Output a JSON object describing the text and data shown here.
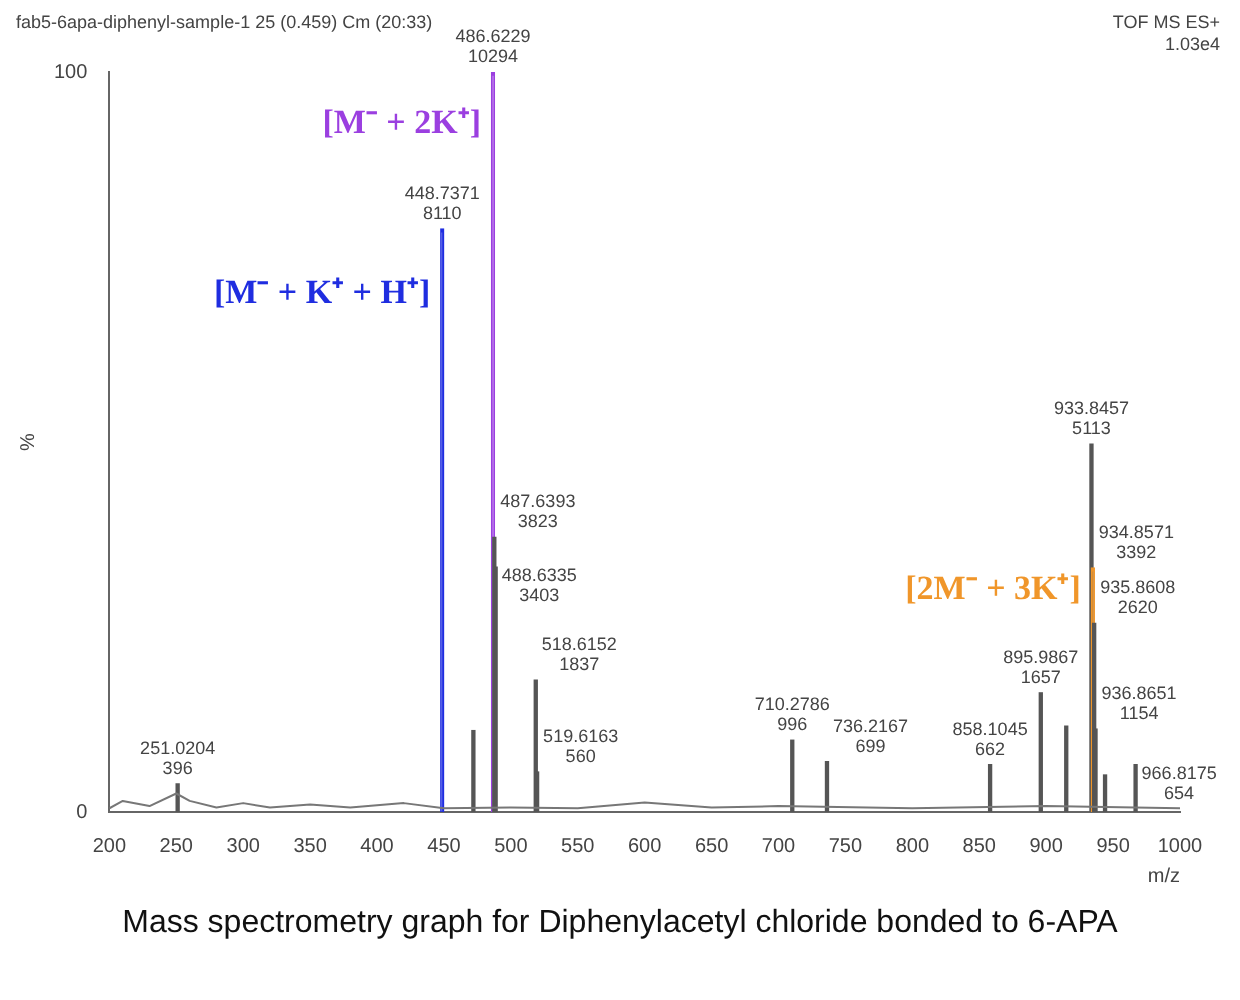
{
  "chart_data": {
    "type": "bar",
    "title": "Mass spectrometry graph for Diphenylacetyl chloride bonded to 6-APA",
    "subtitle": "fab5-6apa-diphenyl-sample-1 25 (0.459) Cm (20:33)",
    "xlabel": "m/z",
    "ylabel": "%",
    "xlim": [
      200,
      1000
    ],
    "xticks": [
      200,
      250,
      300,
      350,
      400,
      450,
      500,
      550,
      600,
      650,
      700,
      750,
      800,
      850,
      900,
      950,
      1000
    ],
    "ylim": [
      0,
      100
    ],
    "yticks": [
      0,
      100
    ],
    "grid": false,
    "legend": false,
    "series": [
      {
        "type": "line",
        "color": "#777777",
        "marker": "none",
        "x": [
          200,
          210,
          230,
          250,
          260,
          280,
          300,
          320,
          350,
          380,
          420,
          450,
          500,
          550,
          600,
          650,
          700,
          800,
          900,
          1000
        ],
        "values": [
          0.5,
          1.5,
          0.8,
          2.5,
          1.5,
          0.6,
          1.2,
          0.6,
          1,
          0.6,
          1.2,
          0.5,
          0.6,
          0.5,
          1.3,
          0.6,
          0.8,
          0.5,
          0.8,
          0.5
        ]
      },
      {
        "color": "#555555",
        "x": [
          251.0204,
          448.7371,
          472,
          486.6229,
          487.6393,
          488.6335,
          518.6152,
          519.6163,
          710.2786,
          736.2167,
          858.1045,
          895.9867,
          915,
          933.8457,
          934.8571,
          935.8608,
          936.8651,
          944,
          966.8175
        ],
        "values": [
          3.8,
          78.8,
          11,
          100,
          37.1,
          33.1,
          17.8,
          5.4,
          9.7,
          6.8,
          6.4,
          16.1,
          11.6,
          49.7,
          33.0,
          25.5,
          11.2,
          5,
          6.4
        ],
        "colors": [
          "#555555",
          "#1f2de0",
          "#555555",
          "#9b3fe0",
          "#555555",
          "#555555",
          "#555555",
          "#555555",
          "#555555",
          "#555555",
          "#555555",
          "#555555",
          "#555555",
          "#555555",
          "#f0962a",
          "#555555",
          "#555555",
          "#555555",
          "#555555"
        ]
      }
    ],
    "annotations": [
      "TOF MS ES+",
      "1.03e4",
      {
        "text": "251.0204\n396",
        "x": 251.0204,
        "y": 3.8
      },
      {
        "text": "448.7371\n8110",
        "x": 448.7371,
        "y": 78.8
      },
      {
        "text": "486.6229\n10294",
        "x": 486.6229,
        "y": 100
      },
      {
        "text": "487.6393\n3823",
        "x": 487.6393,
        "y": 37.1
      },
      {
        "text": "488.6335\n3403",
        "x": 488.6335,
        "y": 33.1
      },
      {
        "text": "518.6152\n1837",
        "x": 518.6152,
        "y": 17.8
      },
      {
        "text": "519.6163\n560",
        "x": 519.6163,
        "y": 5.4
      },
      {
        "text": "710.2786\n996",
        "x": 710.2786,
        "y": 9.7
      },
      {
        "text": "736.2167\n699",
        "x": 736.2167,
        "y": 6.8
      },
      {
        "text": "858.1045\n662",
        "x": 858.1045,
        "y": 6.4
      },
      {
        "text": "895.9867\n1657",
        "x": 895.9867,
        "y": 16.1
      },
      {
        "text": "933.8457\n5113",
        "x": 933.8457,
        "y": 49.7
      },
      {
        "text": "934.8571\n3392",
        "x": 934.8571,
        "y": 33.0
      },
      {
        "text": "935.8608\n2620",
        "x": 935.8608,
        "y": 25.5
      },
      {
        "text": "936.8651\n1154",
        "x": 936.8651,
        "y": 11.2
      },
      {
        "text": "966.8175\n654",
        "x": 966.8175,
        "y": 6.4
      },
      {
        "text": "[M⁻ + K⁺ + H⁺]",
        "x": 448.7371,
        "y": 70
      },
      {
        "text": "[M⁻ + 2K⁺]",
        "x": 486.6229,
        "y": 93
      },
      {
        "text": "[2M⁻ + 3K⁺]",
        "x": 934.8571,
        "y": 30
      }
    ]
  }
}
